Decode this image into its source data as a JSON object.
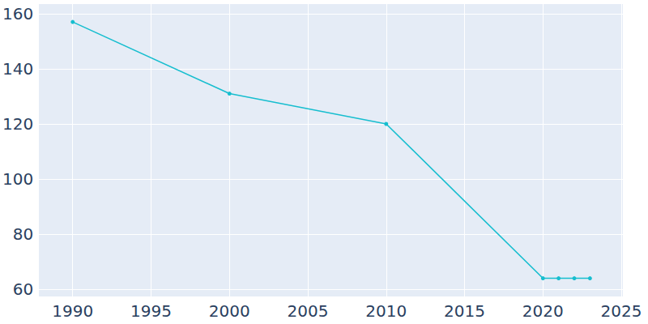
{
  "chart_data": {
    "type": "line",
    "x": [
      1990,
      2000,
      2010,
      2020,
      2021,
      2022,
      2023
    ],
    "values": [
      157,
      131,
      120,
      64,
      64,
      64,
      64
    ],
    "color": "#17becf",
    "marker": "circle",
    "xlim": [
      1987.8,
      2025.1
    ],
    "xticks": [
      1990,
      1995,
      2000,
      2005,
      2010,
      2015,
      2020,
      2025
    ],
    "ylim": [
      57.4,
      163.5
    ],
    "yticks": [
      60,
      80,
      100,
      120,
      140,
      160
    ],
    "grid": true
  }
}
